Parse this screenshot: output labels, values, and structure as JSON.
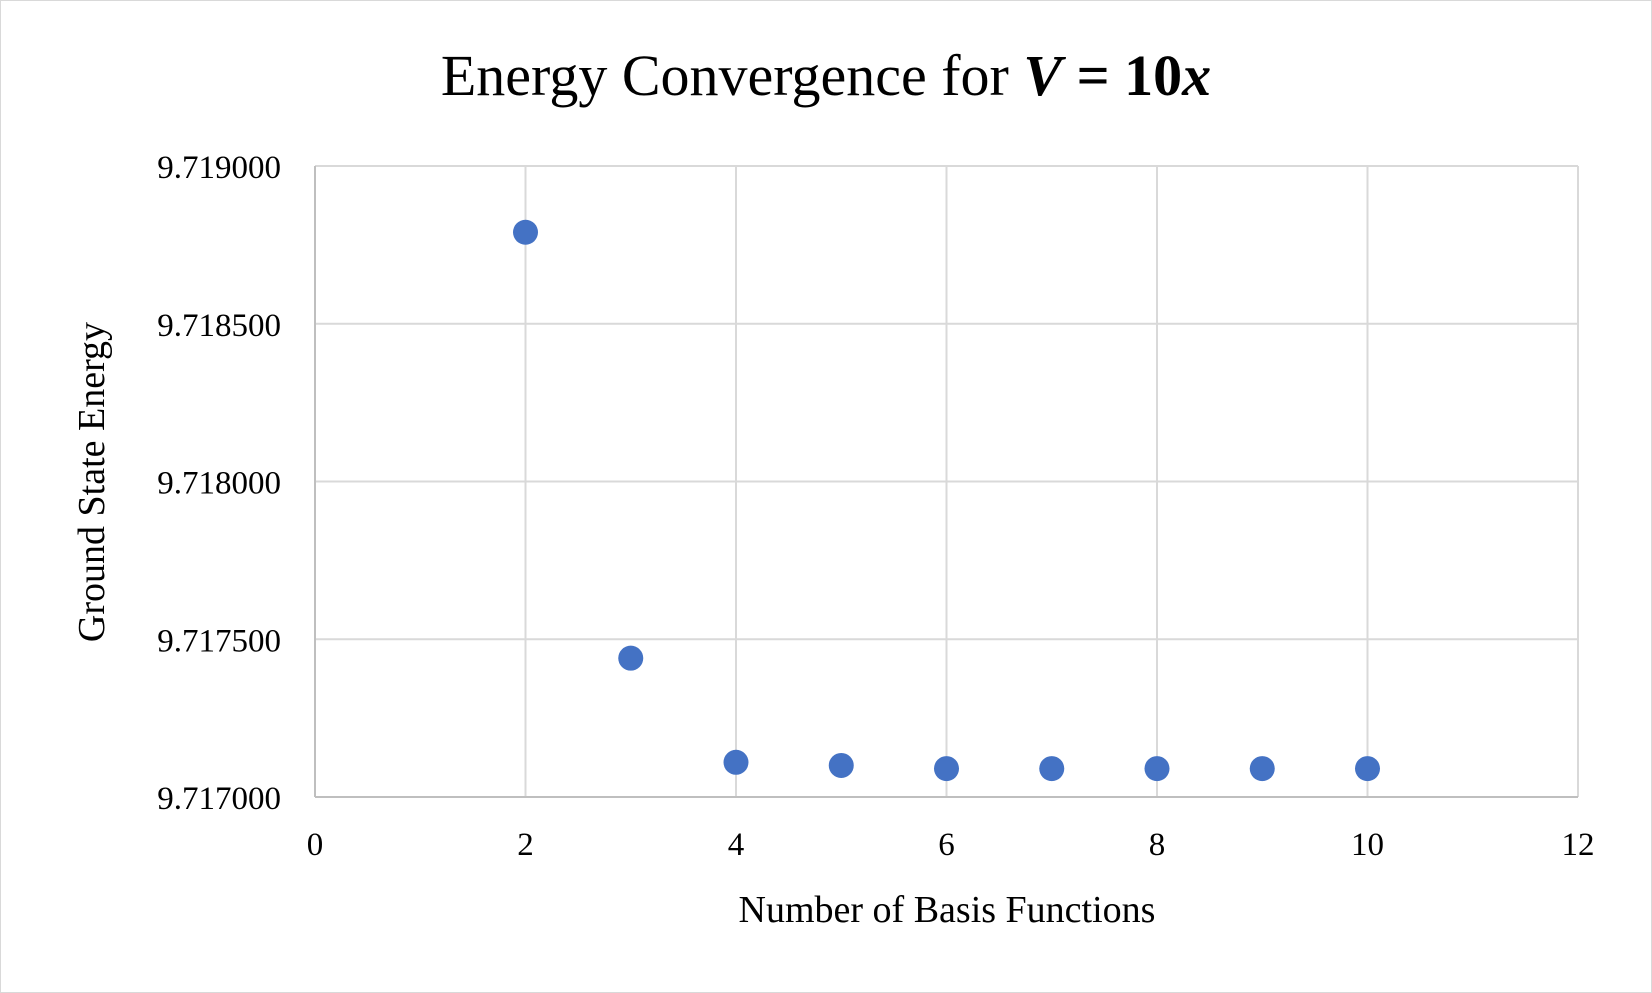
{
  "chart_data": {
    "type": "scatter",
    "title": {
      "prefix": "Energy Convergence for ",
      "var": "V",
      "equals": " = 10",
      "x": "x"
    },
    "xlabel": "Number of Basis Functions",
    "ylabel": "Ground State Energy",
    "xlim": [
      0,
      12
    ],
    "ylim": [
      9.717,
      9.719
    ],
    "x_ticks": [
      0,
      2,
      4,
      6,
      8,
      10,
      12
    ],
    "x_tick_labels": [
      "0",
      "2",
      "4",
      "6",
      "8",
      "10",
      "12"
    ],
    "y_ticks": [
      9.717,
      9.7175,
      9.718,
      9.7185,
      9.719
    ],
    "y_tick_labels": [
      "9.717000",
      "9.717500",
      "9.718000",
      "9.718500",
      "9.719000"
    ],
    "grid": true,
    "legend": "none",
    "series": [
      {
        "color": "#4472c4",
        "x": [
          2,
          3,
          4,
          5,
          6,
          7,
          8,
          9,
          10
        ],
        "y": [
          9.71879,
          9.71744,
          9.71711,
          9.7171,
          9.71709,
          9.71709,
          9.71709,
          9.71709,
          9.71709
        ]
      }
    ]
  }
}
